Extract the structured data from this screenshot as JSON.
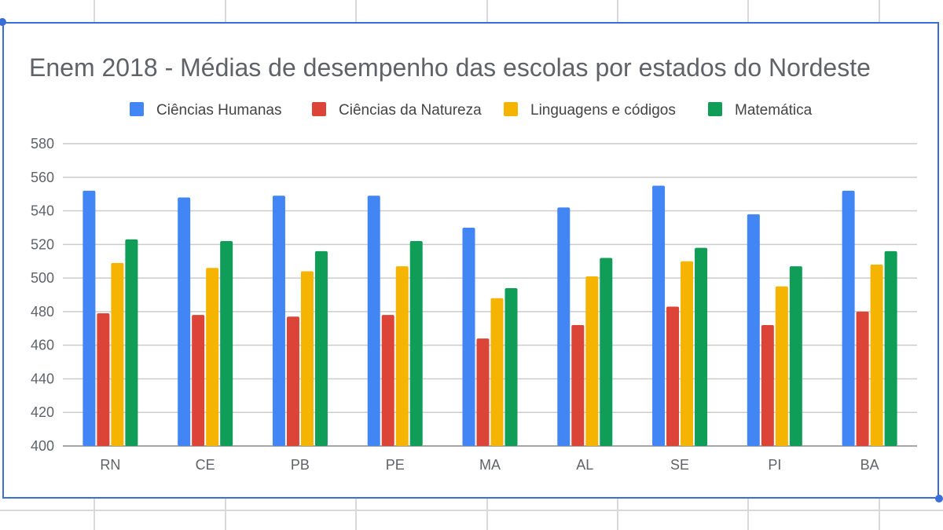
{
  "colors": {
    "series": [
      "#4285f4",
      "#db4437",
      "#f4b400",
      "#0f9d58"
    ],
    "grid": "#cccccc",
    "frame": "#3a6fd8"
  },
  "chart_data": {
    "type": "bar",
    "title": "Enem 2018 - Médias de desempenho das escolas por estados do Nordeste",
    "categories": [
      "RN",
      "CE",
      "PB",
      "PE",
      "MA",
      "AL",
      "SE",
      "PI",
      "BA"
    ],
    "series": [
      {
        "name": "Ciências Humanas",
        "values": [
          552,
          548,
          549,
          549,
          530,
          542,
          555,
          538,
          552
        ]
      },
      {
        "name": "Ciências da Natureza",
        "values": [
          479,
          478,
          477,
          478,
          464,
          472,
          483,
          472,
          480
        ]
      },
      {
        "name": "Linguagens e códigos",
        "values": [
          509,
          506,
          504,
          507,
          488,
          501,
          510,
          495,
          508
        ]
      },
      {
        "name": "Matemática",
        "values": [
          523,
          522,
          516,
          522,
          494,
          512,
          518,
          507,
          516
        ]
      }
    ],
    "yticks": [
      "400",
      "420",
      "440",
      "460",
      "480",
      "500",
      "520",
      "540",
      "560",
      "580"
    ],
    "ylim": [
      400,
      580
    ],
    "grid": true,
    "legend": "top"
  }
}
